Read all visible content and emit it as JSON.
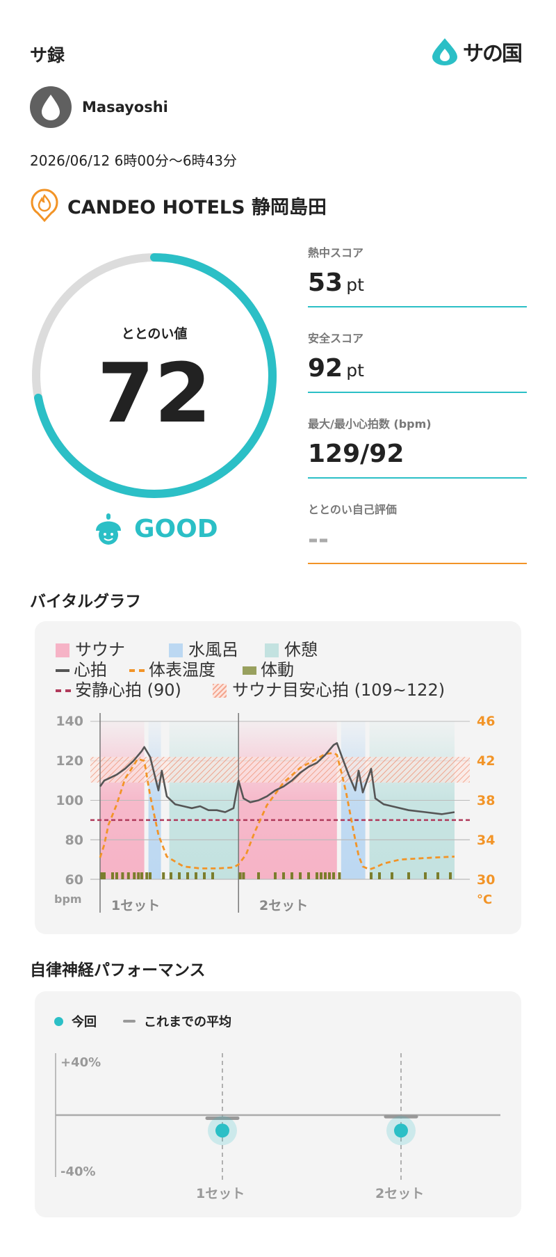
{
  "header": {
    "title": "サ録",
    "logo_text": "サ",
    "logo_text2": "の国"
  },
  "user": {
    "name": "Masayoshi",
    "date": "2026/06/12",
    "time_range": "6時00分〜6時43分"
  },
  "facility": {
    "name": "CANDEO HOTELS 静岡島田"
  },
  "totonoi": {
    "label": "ととのい値",
    "value": "72",
    "value_num": 72,
    "rating": "GOOD",
    "accent": "#2bbfc6"
  },
  "scores": [
    {
      "label": "熱中スコア",
      "value": "53",
      "unit": "pt"
    },
    {
      "label": "安全スコア",
      "value": "92",
      "unit": "pt"
    },
    {
      "label": "最大/最小心拍数 (bpm)",
      "value": "129/92",
      "unit": ""
    },
    {
      "label": "ととのい自己評価",
      "value": "--",
      "unit": ""
    }
  ],
  "vital": {
    "section_title": "バイタルグラフ",
    "legend": {
      "sauna": "サウナ",
      "cold_bath": "水風呂",
      "rest": "休憩",
      "heart_rate": "心拍",
      "body_temp": "体表温度",
      "movement": "体動",
      "resting_hr": "安静心拍 (90)",
      "target_hr": "サウナ目安心拍 (109~122)"
    },
    "y_left_unit": "bpm",
    "y_right_unit": "°C",
    "y_left_ticks": [
      "140",
      "120",
      "100",
      "80",
      "60"
    ],
    "y_right_ticks": [
      "46",
      "42",
      "38",
      "34",
      "30"
    ],
    "set_labels": [
      "1セット",
      "2セット"
    ]
  },
  "chart_data": {
    "type": "line",
    "x_unit": "minutes",
    "xlim": [
      0,
      43
    ],
    "ylim_left": [
      60,
      140
    ],
    "ylim_right": [
      30,
      46
    ],
    "resting_hr": 90,
    "target_hr_range": [
      109,
      122
    ],
    "phases": [
      {
        "type": "sauna",
        "start": 0,
        "end": 5.3
      },
      {
        "type": "cold_bath",
        "start": 5.8,
        "end": 7.3
      },
      {
        "type": "rest",
        "start": 8.3,
        "end": 16.6
      },
      {
        "type": "sauna",
        "start": 16.6,
        "end": 28.4
      },
      {
        "type": "cold_bath",
        "start": 28.9,
        "end": 31.8
      },
      {
        "type": "rest",
        "start": 32.3,
        "end": 42.5
      }
    ],
    "series": [
      {
        "name": "心拍",
        "axis": "left",
        "x": [
          0,
          0.5,
          1,
          2,
          3,
          4,
          5,
          5.3,
          6,
          7,
          7.4,
          8,
          9,
          10,
          11,
          12,
          13,
          14,
          15,
          16,
          16.6,
          17.2,
          18,
          19,
          20,
          21,
          22,
          23,
          24,
          25,
          26,
          27,
          28,
          28.4,
          29,
          29.8,
          30.6,
          31,
          31.5,
          32.5,
          33,
          34,
          35,
          37,
          39,
          41,
          42.5
        ],
        "y": [
          107,
          110,
          111,
          113,
          116,
          120,
          125,
          127,
          122,
          105,
          115,
          102,
          98,
          97,
          96,
          97,
          95,
          95,
          94,
          96,
          110,
          101,
          99,
          100,
          102,
          105,
          107,
          110,
          114,
          117,
          119,
          123,
          128,
          129,
          122,
          113,
          105,
          115,
          104,
          116,
          101,
          98,
          97,
          95,
          94,
          93,
          94
        ]
      },
      {
        "name": "体表温度",
        "axis": "right",
        "x": [
          0,
          0.5,
          1,
          2,
          3,
          4,
          4.5,
          5.3,
          6,
          7,
          8,
          9,
          10,
          12,
          14,
          16,
          16.6,
          17.5,
          18.5,
          20,
          22,
          24,
          26,
          27,
          28,
          28.4,
          29,
          29.5,
          30.5,
          31,
          31.5,
          32.3,
          33,
          34,
          36,
          38,
          40,
          42.5
        ],
        "y": [
          32.2,
          33.5,
          35.5,
          37.6,
          40.2,
          41.5,
          42.2,
          42,
          38.5,
          34.5,
          32.3,
          31.8,
          31.3,
          31.1,
          31.1,
          31.2,
          31.5,
          32.5,
          34.7,
          37.5,
          39.8,
          41.3,
          42.2,
          42.7,
          42.8,
          42.6,
          40.6,
          38.8,
          34.4,
          32.4,
          31.3,
          31,
          31.2,
          31.6,
          32,
          32.1,
          32.2,
          32.3
        ]
      }
    ],
    "movement_x": [
      0.2,
      0.5,
      1.5,
      2,
      2.7,
      3.4,
      4.1,
      4.6,
      5,
      5.6,
      6,
      7.6,
      8.5,
      9.5,
      10.5,
      11.5,
      12.5,
      13.5,
      16.8,
      17.2,
      19,
      21,
      22,
      23,
      24,
      25,
      26,
      26.5,
      27,
      27.5,
      28,
      28.7,
      32.5,
      33.5,
      35,
      37,
      39,
      40.5,
      42
    ]
  },
  "autonomic": {
    "section_title": "自律神経パフォーマンス",
    "legend_current": "今回",
    "legend_average": "これまでの平均",
    "y_top": "+40%",
    "y_bottom": "-40%",
    "set_labels": [
      "1セット",
      "2セット"
    ]
  },
  "autonomic_data": {
    "type": "scatter",
    "ylim": [
      -40,
      40
    ],
    "categories": [
      "1セット",
      "2セット"
    ],
    "current": [
      -10,
      -10
    ],
    "average": [
      -2,
      -1
    ]
  }
}
